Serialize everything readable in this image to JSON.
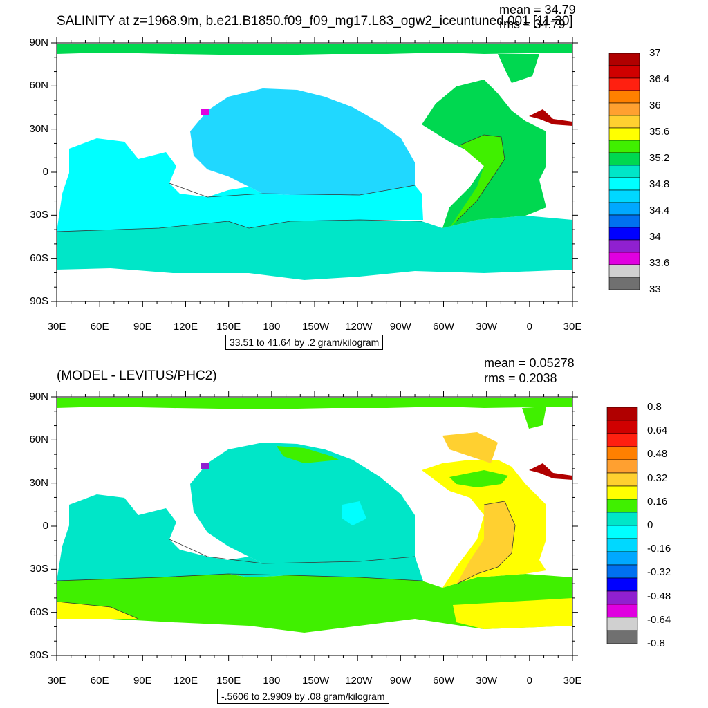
{
  "panels": [
    {
      "title": "SALINITY at z=1968.9m, b.e21.B1850.f09_f09_mg17.L83_ogw2_iceuntuned.001 [11-30]",
      "mean_text": "mean = 34.79",
      "rms_text": "rms = 34.79",
      "contour_info": "33.51 to 41.64 by .2 gram/kilogram",
      "colorbar": {
        "colors": [
          "#b00000",
          "#d00000",
          "#ff2010",
          "#ff8000",
          "#ffa030",
          "#ffd030",
          "#ffff00",
          "#40f000",
          "#00d850",
          "#00e6c8",
          "#00ffff",
          "#00d8ff",
          "#00a8ff",
          "#0070f0",
          "#0000ff",
          "#9020d0",
          "#e000e0",
          "#d0d0d0",
          "#707070"
        ],
        "labels": [
          "37",
          "36.4",
          "36",
          "35.6",
          "35.2",
          "34.8",
          "34.4",
          "34",
          "33.6",
          "33"
        ]
      }
    },
    {
      "title": "(MODEL - LEVITUS/PHC2)",
      "mean_text": "mean = 0.05278",
      "rms_text": "rms = 0.2038",
      "contour_info": "-.5606 to 2.9909 by .08 gram/kilogram",
      "colorbar": {
        "colors": [
          "#b00000",
          "#d00000",
          "#ff2010",
          "#ff8000",
          "#ffa030",
          "#ffd030",
          "#ffff00",
          "#40f000",
          "#00e6c8",
          "#00ffff",
          "#00d8ff",
          "#00a8ff",
          "#0070f0",
          "#0000ff",
          "#9020d0",
          "#e000e0",
          "#d0d0d0",
          "#707070"
        ],
        "labels": [
          "0.8",
          "0.64",
          "0.48",
          "0.32",
          "0.16",
          "0",
          "-0.16",
          "-0.32",
          "-0.48",
          "-0.64",
          "-0.8"
        ]
      }
    }
  ],
  "axes": {
    "lat_labels": [
      "90N",
      "60N",
      "30N",
      "0",
      "30S",
      "60S",
      "90S"
    ],
    "lon_labels": [
      "30E",
      "60E",
      "90E",
      "120E",
      "150E",
      "180",
      "150W",
      "120W",
      "90W",
      "60W",
      "30W",
      "0",
      "30E"
    ]
  }
}
